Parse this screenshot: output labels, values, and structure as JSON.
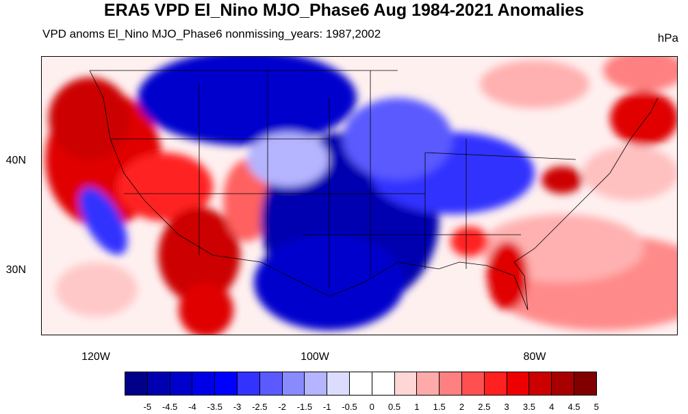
{
  "title": "ERA5 VPD El_Nino MJO_Phase6 Aug 1984-2021 Anomalies",
  "subtitle": "VPD anoms El_Nino MJO_Phase6 nonmissing_years: 1987,2002",
  "units": "hPa",
  "axes": {
    "y_ticks": [
      "40N",
      "30N"
    ],
    "x_ticks": [
      "120W",
      "100W",
      "80W"
    ]
  },
  "colorbar": {
    "labels": [
      "-5",
      "-4.5",
      "-4",
      "-3.5",
      "-3",
      "-2.5",
      "-2",
      "-1.5",
      "-1",
      "-0.5",
      "0",
      "0.5",
      "1",
      "1.5",
      "2",
      "2.5",
      "3",
      "3.5",
      "4",
      "4.5",
      "5"
    ],
    "colors": [
      "#00008b",
      "#0000b0",
      "#0000cd",
      "#0000e6",
      "#0000ff",
      "#3333ff",
      "#5a5aff",
      "#8a8aff",
      "#b4b4ff",
      "#dcdcff",
      "#ffffff",
      "#ffffff",
      "#ffd6d6",
      "#ffaaaa",
      "#ff8080",
      "#ff5050",
      "#ff2020",
      "#ee0000",
      "#cc0000",
      "#a80000",
      "#800000"
    ]
  },
  "map": {
    "description_colors": {
      "negative": "#0000cd",
      "positive": "#e00000"
    }
  }
}
